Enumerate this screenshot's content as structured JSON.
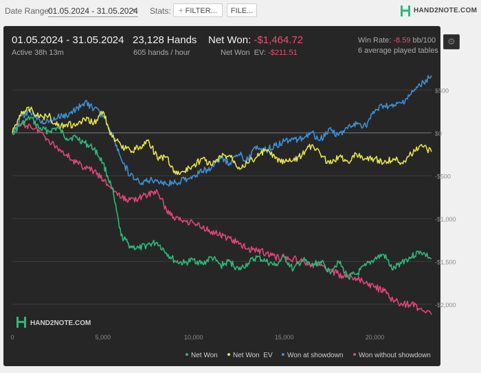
{
  "toolbar": {
    "date_range_label": "Date Range:",
    "date_range_value": "01.05.2024 - 31.05.2024",
    "stats_label": "Stats:",
    "filter_button": "FILTER...",
    "file_button": "FILE...",
    "brand": "HAND2NOTE.COM"
  },
  "summary": {
    "date_range": "01.05.2024 - 31.05.2024",
    "active": "Active 38h 13m",
    "hands": "23,128 Hands",
    "hands_per_hour": "605 hands / hour",
    "net_won_label": "Net Won:",
    "net_won_value": "-$1,464.72",
    "net_won_ev_label": "Net Won  EV:",
    "net_won_ev_value": "-$211.51",
    "win_rate_label": "Win Rate:",
    "win_rate_value": "-8.59",
    "win_rate_unit": "bb/100",
    "tables": "6 average played tables"
  },
  "watermark": "HAND2NOTE.COM",
  "colors": {
    "net_won": "#2db97a",
    "net_won_ev": "#e6e24a",
    "won_at_showdown": "#3d8fd6",
    "won_without_showdown": "#e0457b",
    "negative_text": "#e94f73"
  },
  "chart_data": {
    "type": "line",
    "xlim": [
      0,
      23128
    ],
    "ylim": [
      -2250,
      750
    ],
    "x_ticks": [
      0,
      5000,
      10000,
      15000,
      20000
    ],
    "x_tick_labels": [
      "0",
      "5,000",
      "10,000",
      "15,000",
      "20,000"
    ],
    "y_ticks": [
      500,
      0,
      -500,
      -1000,
      -1500,
      -2000
    ],
    "y_tick_labels": [
      "$500",
      "$0",
      "-$500",
      "-$1,000",
      "-$1,500",
      "-$2,000"
    ],
    "legend_position": "bottom-right",
    "series": [
      {
        "name": "Net Won",
        "color": "#2db97a",
        "x": [
          0,
          500,
          1000,
          1500,
          2000,
          2500,
          3000,
          3500,
          4000,
          4500,
          5000,
          5500,
          6000,
          6500,
          7000,
          7500,
          8000,
          8500,
          9000,
          9500,
          10000,
          10500,
          11000,
          11500,
          12000,
          12500,
          13000,
          13500,
          14000,
          14500,
          15000,
          15500,
          16000,
          16500,
          17000,
          17500,
          18000,
          18500,
          19000,
          19500,
          20000,
          20500,
          21000,
          21500,
          22000,
          22500,
          23128
        ],
        "y": [
          0,
          100,
          180,
          50,
          20,
          60,
          -60,
          -50,
          -120,
          -180,
          -350,
          -650,
          -1200,
          -1320,
          -1350,
          -1300,
          -1280,
          -1400,
          -1500,
          -1520,
          -1480,
          -1530,
          -1450,
          -1550,
          -1500,
          -1600,
          -1520,
          -1450,
          -1500,
          -1550,
          -1450,
          -1600,
          -1480,
          -1550,
          -1500,
          -1620,
          -1500,
          -1680,
          -1650,
          -1550,
          -1470,
          -1420,
          -1600,
          -1500,
          -1450,
          -1380,
          -1470
        ]
      },
      {
        "name": "Net Won  EV",
        "color": "#e6e24a",
        "x": [
          0,
          500,
          1000,
          1500,
          2000,
          2500,
          3000,
          3500,
          4000,
          4500,
          5000,
          5500,
          6000,
          6500,
          7000,
          7500,
          8000,
          8500,
          9000,
          9500,
          10000,
          10500,
          11000,
          11500,
          12000,
          12500,
          13000,
          13500,
          14000,
          14500,
          15000,
          15500,
          16000,
          16500,
          17000,
          17500,
          18000,
          18500,
          19000,
          19500,
          20000,
          20500,
          21000,
          21500,
          22000,
          22500,
          23128
        ],
        "y": [
          0,
          250,
          280,
          180,
          200,
          80,
          100,
          80,
          150,
          120,
          250,
          -50,
          -150,
          -200,
          -180,
          -80,
          -300,
          -280,
          -480,
          -450,
          -380,
          -300,
          -380,
          -280,
          -260,
          -400,
          -350,
          -280,
          -200,
          -300,
          -350,
          -320,
          -250,
          -150,
          -250,
          -360,
          -280,
          -330,
          -250,
          -300,
          -300,
          -350,
          -300,
          -350,
          -250,
          -150,
          -220
        ]
      },
      {
        "name": "Won at showdown",
        "color": "#3d8fd6",
        "x": [
          0,
          500,
          1000,
          1500,
          2000,
          2500,
          3000,
          3500,
          4000,
          4500,
          5000,
          5500,
          6000,
          6500,
          7000,
          7500,
          8000,
          8500,
          9000,
          9500,
          10000,
          10500,
          11000,
          11500,
          12000,
          12500,
          13000,
          13500,
          14000,
          14500,
          15000,
          15500,
          16000,
          16500,
          17000,
          17500,
          18000,
          18500,
          19000,
          19500,
          20000,
          20500,
          21000,
          21500,
          22000,
          22500,
          23128
        ],
        "y": [
          0,
          200,
          250,
          150,
          120,
          180,
          200,
          270,
          360,
          280,
          200,
          0,
          -300,
          -500,
          -580,
          -560,
          -550,
          -600,
          -580,
          -550,
          -500,
          -450,
          -400,
          -300,
          -350,
          -250,
          -320,
          -150,
          -200,
          -150,
          -100,
          -80,
          -60,
          0,
          -80,
          50,
          -30,
          50,
          100,
          80,
          250,
          320,
          300,
          350,
          450,
          550,
          670
        ]
      },
      {
        "name": "Won without showdown",
        "color": "#e0457b",
        "x": [
          0,
          500,
          1000,
          1500,
          2000,
          2500,
          3000,
          3500,
          4000,
          4500,
          5000,
          5500,
          6000,
          6500,
          7000,
          7500,
          8000,
          8500,
          9000,
          9500,
          10000,
          10500,
          11000,
          11500,
          12000,
          12500,
          13000,
          13500,
          14000,
          14500,
          15000,
          15500,
          16000,
          16500,
          17000,
          17500,
          18000,
          18500,
          19000,
          19500,
          20000,
          20500,
          21000,
          21500,
          22000,
          22500,
          23128
        ],
        "y": [
          0,
          100,
          80,
          20,
          -80,
          -180,
          -250,
          -350,
          -400,
          -450,
          -550,
          -650,
          -760,
          -780,
          -760,
          -720,
          -680,
          -900,
          -1000,
          -1020,
          -1050,
          -1100,
          -1150,
          -1200,
          -1230,
          -1300,
          -1350,
          -1370,
          -1400,
          -1450,
          -1450,
          -1470,
          -1500,
          -1550,
          -1550,
          -1600,
          -1650,
          -1680,
          -1700,
          -1750,
          -1800,
          -1850,
          -1950,
          -2000,
          -2000,
          -2050,
          -2120
        ]
      }
    ]
  }
}
